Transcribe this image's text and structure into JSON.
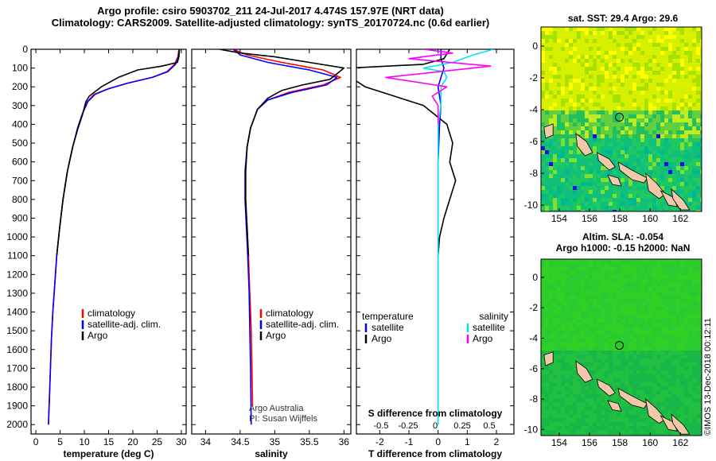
{
  "header": {
    "line1": "Argo profile: csiro 5903702_211 24-Jul-2017 4.474S 157.97E (NRT data)",
    "line2": "Climatology: CARS2009. Satellite-adjusted climatology: synTS_20170724.nc (0.6d earlier)"
  },
  "credit": "©IMOS 13-Dec-2018 00:12:11",
  "colors": {
    "climatology": "#ff0000",
    "satellite": "#0000ff",
    "argo": "#000000",
    "sat_salinity": "#00e5ee",
    "argo_salinity": "#ff00ff",
    "land": "#f2c9a8"
  },
  "chart_data": [
    {
      "id": "temperature",
      "type": "line",
      "xlabel": "temperature (deg C)",
      "xlim": [
        -1,
        31
      ],
      "ylim": [
        2050,
        0
      ],
      "xticks": [
        0,
        5,
        10,
        15,
        20,
        25,
        30
      ],
      "yticks": [
        0,
        100,
        200,
        300,
        400,
        500,
        600,
        700,
        800,
        900,
        1000,
        1100,
        1200,
        1300,
        1400,
        1500,
        1600,
        1700,
        1800,
        1900,
        2000
      ],
      "legend": [
        "climatology",
        "satellite-adj. clim.",
        "Argo"
      ],
      "series": [
        {
          "name": "climatology",
          "color": "#ff0000",
          "points": [
            [
              29.5,
              0
            ],
            [
              29.3,
              40
            ],
            [
              28.6,
              80
            ],
            [
              27,
              120
            ],
            [
              24,
              150
            ],
            [
              19,
              180
            ],
            [
              15,
              210
            ],
            [
              12,
              240
            ],
            [
              10.6,
              280
            ],
            [
              9.5,
              350
            ],
            [
              8.6,
              420
            ],
            [
              7.6,
              520
            ],
            [
              6.5,
              650
            ],
            [
              5.6,
              800
            ],
            [
              4.9,
              950
            ],
            [
              4.3,
              1100
            ],
            [
              3.9,
              1250
            ],
            [
              3.5,
              1400
            ],
            [
              3.2,
              1550
            ],
            [
              3,
              1700
            ],
            [
              2.8,
              1850
            ],
            [
              2.6,
              2000
            ]
          ]
        },
        {
          "name": "satellite-adj. clim.",
          "color": "#0000ff",
          "points": [
            [
              29.6,
              0
            ],
            [
              29.4,
              40
            ],
            [
              28.8,
              80
            ],
            [
              27.2,
              120
            ],
            [
              24,
              150
            ],
            [
              19,
              180
            ],
            [
              15,
              210
            ],
            [
              12.2,
              240
            ],
            [
              10.7,
              280
            ],
            [
              9.5,
              350
            ],
            [
              8.6,
              420
            ],
            [
              7.6,
              520
            ],
            [
              6.5,
              650
            ],
            [
              5.6,
              800
            ],
            [
              4.9,
              950
            ],
            [
              4.3,
              1100
            ],
            [
              3.9,
              1250
            ],
            [
              3.5,
              1400
            ],
            [
              3.2,
              1550
            ],
            [
              3,
              1700
            ],
            [
              2.8,
              1850
            ],
            [
              2.6,
              2000
            ]
          ]
        },
        {
          "name": "Argo",
          "color": "#000000",
          "points": [
            [
              29.6,
              0
            ],
            [
              29.5,
              40
            ],
            [
              29.2,
              70
            ],
            [
              26,
              90
            ],
            [
              21,
              110
            ],
            [
              17,
              150
            ],
            [
              13.5,
              200
            ],
            [
              11,
              250
            ],
            [
              10.3,
              280
            ],
            [
              9.6,
              350
            ],
            [
              8.7,
              420
            ],
            [
              7.6,
              520
            ],
            [
              6.5,
              650
            ],
            [
              5.6,
              800
            ],
            [
              4.9,
              950
            ],
            [
              4.3,
              1100
            ]
          ]
        }
      ]
    },
    {
      "id": "salinity",
      "type": "line",
      "xlabel": "salinity",
      "xlim": [
        33.8,
        36.1
      ],
      "ylim": [
        2050,
        0
      ],
      "xticks": [
        34,
        34.5,
        35,
        35.5,
        36
      ],
      "legend": [
        "climatology",
        "satellite-adj. clim.",
        "Argo"
      ],
      "annotation": [
        "Argo Australia",
        "PI: Susan Wijffels"
      ],
      "series": [
        {
          "name": "climatology",
          "color": "#ff0000",
          "points": [
            [
              34.4,
              0
            ],
            [
              34.6,
              30
            ],
            [
              35.1,
              70
            ],
            [
              35.7,
              110
            ],
            [
              35.95,
              150
            ],
            [
              35.7,
              190
            ],
            [
              35.2,
              230
            ],
            [
              34.9,
              270
            ],
            [
              34.75,
              320
            ],
            [
              34.65,
              420
            ],
            [
              34.6,
              520
            ],
            [
              34.58,
              650
            ],
            [
              34.58,
              800
            ],
            [
              34.6,
              950
            ],
            [
              34.62,
              1100
            ],
            [
              34.64,
              1300
            ],
            [
              34.66,
              1500
            ],
            [
              34.67,
              1700
            ],
            [
              34.68,
              1900
            ]
          ]
        },
        {
          "name": "satellite-adj. clim.",
          "color": "#0000ff",
          "points": [
            [
              34.4,
              0
            ],
            [
              34.5,
              30
            ],
            [
              34.9,
              70
            ],
            [
              35.5,
              110
            ],
            [
              35.9,
              150
            ],
            [
              35.75,
              190
            ],
            [
              35.25,
              230
            ],
            [
              34.9,
              270
            ],
            [
              34.75,
              320
            ],
            [
              34.65,
              420
            ],
            [
              34.6,
              520
            ],
            [
              34.57,
              650
            ],
            [
              34.57,
              800
            ],
            [
              34.59,
              950
            ],
            [
              34.61,
              1100
            ],
            [
              34.63,
              1300
            ],
            [
              34.64,
              1500
            ],
            [
              34.65,
              1700
            ],
            [
              34.66,
              2000
            ]
          ]
        },
        {
          "name": "Argo",
          "color": "#000000",
          "points": [
            [
              34.2,
              0
            ],
            [
              34.5,
              20
            ],
            [
              35,
              40
            ],
            [
              35.5,
              70
            ],
            [
              36,
              100
            ],
            [
              35.9,
              130
            ],
            [
              35.8,
              160
            ],
            [
              35.4,
              190
            ],
            [
              35.1,
              220
            ],
            [
              34.9,
              260
            ],
            [
              34.75,
              320
            ],
            [
              34.65,
              420
            ],
            [
              34.6,
              520
            ],
            [
              34.58,
              650
            ],
            [
              34.58,
              800
            ],
            [
              34.6,
              950
            ],
            [
              34.62,
              1100
            ]
          ]
        }
      ]
    },
    {
      "id": "difference",
      "type": "line",
      "xlabel": "T difference from climatology",
      "xlabel2": "S difference from climatology",
      "xlim": [
        -2.8,
        2.6
      ],
      "ylim": [
        2050,
        0
      ],
      "xticks": [
        -2,
        -1,
        0,
        1,
        2
      ],
      "xticks2": [
        -0.5,
        -0.25,
        0,
        0.25,
        0.5
      ],
      "legend_left_title": "temperature",
      "legend_left": [
        "satellite",
        "Argo"
      ],
      "legend_right_title": "salinity",
      "legend_right": [
        "satellite",
        "Argo"
      ],
      "series": [
        {
          "name": "temperature satellite",
          "color": "#0000ff",
          "points": [
            [
              0.1,
              0
            ],
            [
              0.1,
              50
            ],
            [
              0.2,
              100
            ],
            [
              0.1,
              150
            ],
            [
              0,
              200
            ],
            [
              0.1,
              300
            ],
            [
              0.05,
              400
            ],
            [
              0,
              600
            ],
            [
              0,
              800
            ],
            [
              0,
              1000
            ],
            [
              0,
              1200
            ],
            [
              0,
              1400
            ],
            [
              0,
              1600
            ],
            [
              0,
              1800
            ],
            [
              0,
              2000
            ]
          ]
        },
        {
          "name": "temperature Argo",
          "color": "#000000",
          "points": [
            [
              0.4,
              0
            ],
            [
              0.2,
              50
            ],
            [
              -0.5,
              80
            ],
            [
              -3,
              100
            ],
            [
              -3,
              150
            ],
            [
              -2.5,
              200
            ],
            [
              -1.5,
              250
            ],
            [
              -0.5,
              300
            ],
            [
              0.3,
              400
            ],
            [
              0.5,
              500
            ],
            [
              0.4,
              600
            ],
            [
              0.6,
              700
            ],
            [
              0.4,
              800
            ],
            [
              0.2,
              900
            ],
            [
              0.05,
              1000
            ],
            [
              0,
              1100
            ]
          ]
        },
        {
          "name": "salinity satellite",
          "color": "#00e5ee",
          "points": [
            [
              1.9,
              0
            ],
            [
              1.2,
              30
            ],
            [
              0.5,
              70
            ],
            [
              -0.5,
              100
            ],
            [
              0.2,
              120
            ],
            [
              0.3,
              150
            ],
            [
              0.1,
              200
            ],
            [
              0.1,
              300
            ],
            [
              0,
              400
            ],
            [
              0,
              600
            ],
            [
              0,
              800
            ],
            [
              0,
              1000
            ],
            [
              0,
              1200
            ],
            [
              0,
              1400
            ],
            [
              0,
              1600
            ],
            [
              0,
              1800
            ],
            [
              0,
              2000
            ]
          ]
        },
        {
          "name": "salinity Argo",
          "color": "#ff00ff",
          "points": [
            [
              -0.5,
              0
            ],
            [
              0.5,
              20
            ],
            [
              -1,
              50
            ],
            [
              1.8,
              90
            ],
            [
              -1.8,
              150
            ],
            [
              0.3,
              200
            ],
            [
              -0.2,
              250
            ],
            [
              0,
              300
            ],
            [
              0,
              400
            ]
          ]
        }
      ]
    },
    {
      "id": "sst_map",
      "type": "heatmap",
      "title": "sat. SST: 29.4 Argo: 29.6",
      "xlim": [
        152.8,
        163.4
      ],
      "ylim": [
        -10.4,
        1.2
      ],
      "xticks": [
        154,
        156,
        158,
        160,
        162
      ],
      "yticks": [
        0,
        -2,
        -4,
        -6,
        -8,
        -10
      ],
      "profile_location": [
        157.97,
        -4.474
      ]
    },
    {
      "id": "sla_map",
      "type": "heatmap",
      "title": "Altim. SLA: -0.054",
      "subtitle": "Argo h1000: -0.15 h2000: NaN",
      "xlim": [
        152.8,
        163.4
      ],
      "ylim": [
        -10.4,
        1.2
      ],
      "xticks": [
        154,
        156,
        158,
        160,
        162
      ],
      "yticks": [
        0,
        -2,
        -4,
        -6,
        -8,
        -10
      ],
      "profile_location": [
        157.97,
        -4.474
      ]
    }
  ]
}
